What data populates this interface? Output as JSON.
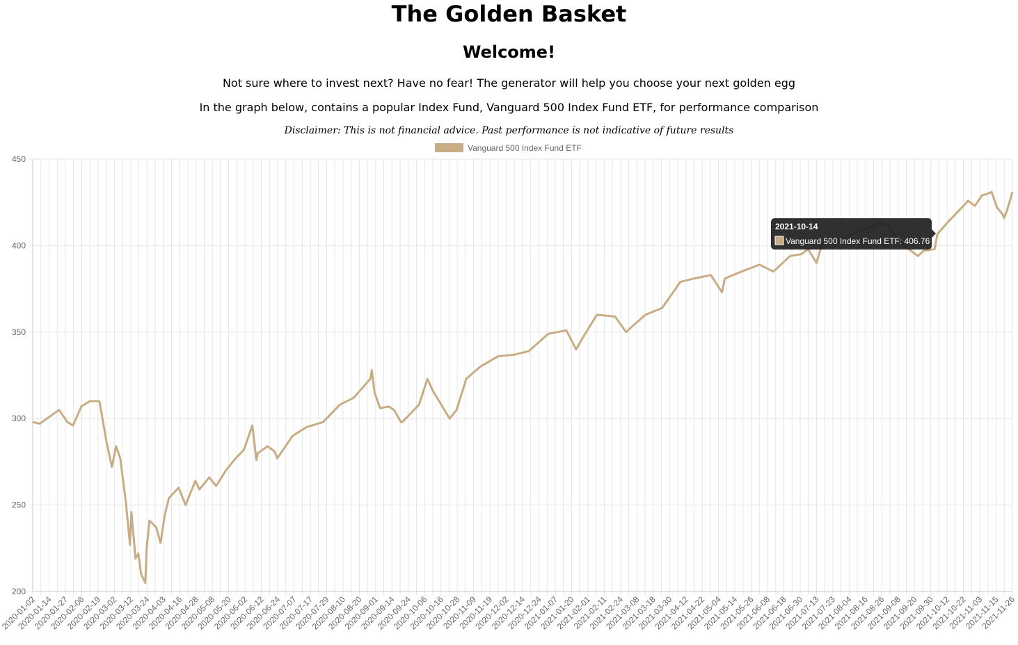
{
  "page": {
    "title": "The Golden Basket",
    "welcome": "Welcome!",
    "intro_1": "Not sure where to invest next? Have no fear! The generator will help you choose your next golden egg",
    "intro_2": "In the graph below, contains a popular Index Fund, Vanguard 500 Index Fund ETF, for performance comparison",
    "disclaimer": "Disclaimer: This is not financial advice. Past performance is not indicative of future results"
  },
  "colors": {
    "series": "#c8ad84",
    "grid": "#e6e6e6",
    "tooltip_bg": "#1e1e1e"
  },
  "chart_data": {
    "type": "line",
    "legend_position": "top",
    "grid": true,
    "ylim": [
      200,
      450
    ],
    "yticks": [
      200,
      250,
      300,
      350,
      400,
      450
    ],
    "x_tick_labels": [
      "2020-01-02",
      "2020-01-14",
      "2020-01-27",
      "2020-02-06",
      "2020-02-19",
      "2020-03-02",
      "2020-03-12",
      "2020-03-24",
      "2020-04-03",
      "2020-04-16",
      "2020-04-28",
      "2020-05-08",
      "2020-05-20",
      "2020-06-02",
      "2020-06-12",
      "2020-06-24",
      "2020-07-07",
      "2020-07-17",
      "2020-07-29",
      "2020-08-10",
      "2020-08-20",
      "2020-09-01",
      "2020-09-14",
      "2020-09-24",
      "2020-10-06",
      "2020-10-16",
      "2020-10-28",
      "2020-11-09",
      "2020-11-19",
      "2020-12-02",
      "2020-12-14",
      "2020-12-24",
      "2021-01-07",
      "2021-01-20",
      "2021-02-01",
      "2021-02-11",
      "2021-02-24",
      "2021-03-08",
      "2021-03-18",
      "2021-03-30",
      "2021-04-12",
      "2021-04-22",
      "2021-05-04",
      "2021-05-14",
      "2021-05-26",
      "2021-06-08",
      "2021-06-18",
      "2021-06-30",
      "2021-07-13",
      "2021-07-23",
      "2021-08-04",
      "2021-08-16",
      "2021-08-26",
      "2021-09-08",
      "2021-09-20",
      "2021-09-30",
      "2021-10-12",
      "2021-10-22",
      "2021-11-03",
      "2021-11-15",
      "2021-11-26"
    ],
    "series": [
      {
        "name": "Vanguard 500 Index Fund ETF",
        "points": [
          [
            "2020-01-02",
            298
          ],
          [
            "2020-01-07",
            297
          ],
          [
            "2020-01-14",
            301
          ],
          [
            "2020-01-21",
            305
          ],
          [
            "2020-01-27",
            298
          ],
          [
            "2020-01-31",
            296
          ],
          [
            "2020-02-06",
            307
          ],
          [
            "2020-02-12",
            310
          ],
          [
            "2020-02-19",
            310
          ],
          [
            "2020-02-24",
            287
          ],
          [
            "2020-02-28",
            272
          ],
          [
            "2020-03-02",
            284
          ],
          [
            "2020-03-05",
            277
          ],
          [
            "2020-03-09",
            252
          ],
          [
            "2020-03-12",
            227
          ],
          [
            "2020-03-13",
            246
          ],
          [
            "2020-03-16",
            219
          ],
          [
            "2020-03-18",
            222
          ],
          [
            "2020-03-20",
            210
          ],
          [
            "2020-03-23",
            205
          ],
          [
            "2020-03-24",
            225
          ],
          [
            "2020-03-26",
            241
          ],
          [
            "2020-03-31",
            237
          ],
          [
            "2020-04-03",
            228
          ],
          [
            "2020-04-06",
            244
          ],
          [
            "2020-04-09",
            254
          ],
          [
            "2020-04-16",
            260
          ],
          [
            "2020-04-21",
            250
          ],
          [
            "2020-04-28",
            264
          ],
          [
            "2020-05-01",
            259
          ],
          [
            "2020-05-08",
            266
          ],
          [
            "2020-05-13",
            261
          ],
          [
            "2020-05-20",
            270
          ],
          [
            "2020-05-27",
            277
          ],
          [
            "2020-06-02",
            282
          ],
          [
            "2020-06-08",
            296
          ],
          [
            "2020-06-11",
            276
          ],
          [
            "2020-06-12",
            280
          ],
          [
            "2020-06-19",
            284
          ],
          [
            "2020-06-24",
            281
          ],
          [
            "2020-06-26",
            277
          ],
          [
            "2020-07-07",
            290
          ],
          [
            "2020-07-17",
            295
          ],
          [
            "2020-07-29",
            298
          ],
          [
            "2020-08-10",
            308
          ],
          [
            "2020-08-20",
            312
          ],
          [
            "2020-09-01",
            323
          ],
          [
            "2020-09-02",
            328
          ],
          [
            "2020-09-04",
            315
          ],
          [
            "2020-09-08",
            306
          ],
          [
            "2020-09-14",
            307
          ],
          [
            "2020-09-18",
            305
          ],
          [
            "2020-09-23",
            298
          ],
          [
            "2020-09-24",
            298
          ],
          [
            "2020-10-06",
            308
          ],
          [
            "2020-10-12",
            323
          ],
          [
            "2020-10-16",
            316
          ],
          [
            "2020-10-28",
            300
          ],
          [
            "2020-11-02",
            305
          ],
          [
            "2020-11-09",
            323
          ],
          [
            "2020-11-19",
            330
          ],
          [
            "2020-12-02",
            336
          ],
          [
            "2020-12-14",
            337
          ],
          [
            "2020-12-24",
            339
          ],
          [
            "2021-01-07",
            349
          ],
          [
            "2021-01-20",
            351
          ],
          [
            "2021-01-27",
            340
          ],
          [
            "2021-02-01",
            347
          ],
          [
            "2021-02-11",
            360
          ],
          [
            "2021-02-24",
            359
          ],
          [
            "2021-03-04",
            350
          ],
          [
            "2021-03-08",
            353
          ],
          [
            "2021-03-18",
            360
          ],
          [
            "2021-03-30",
            364
          ],
          [
            "2021-04-12",
            379
          ],
          [
            "2021-04-22",
            381
          ],
          [
            "2021-05-04",
            383
          ],
          [
            "2021-05-12",
            373
          ],
          [
            "2021-05-14",
            381
          ],
          [
            "2021-05-26",
            385
          ],
          [
            "2021-06-08",
            389
          ],
          [
            "2021-06-18",
            385
          ],
          [
            "2021-06-30",
            394
          ],
          [
            "2021-07-08",
            395
          ],
          [
            "2021-07-13",
            398
          ],
          [
            "2021-07-19",
            390
          ],
          [
            "2021-07-23",
            401
          ],
          [
            "2021-08-04",
            403
          ],
          [
            "2021-08-16",
            408
          ],
          [
            "2021-08-26",
            410
          ],
          [
            "2021-09-02",
            413
          ],
          [
            "2021-09-08",
            412
          ],
          [
            "2021-09-20",
            400
          ],
          [
            "2021-09-30",
            394
          ],
          [
            "2021-10-04",
            397
          ],
          [
            "2021-10-12",
            398
          ],
          [
            "2021-10-14",
            406.76
          ],
          [
            "2021-10-22",
            414
          ],
          [
            "2021-11-03",
            424
          ],
          [
            "2021-11-05",
            426
          ],
          [
            "2021-11-10",
            423
          ],
          [
            "2021-11-15",
            429
          ],
          [
            "2021-11-19",
            430
          ],
          [
            "2021-11-22",
            431
          ],
          [
            "2021-11-26",
            422
          ],
          [
            "2021-11-30",
            418
          ],
          [
            "2021-12-01",
            416
          ],
          [
            "2021-12-03",
            420
          ],
          [
            "2021-12-07",
            431
          ]
        ]
      }
    ]
  },
  "tooltip": {
    "title": "2021-10-14",
    "body": "Vanguard 500 Index Fund ETF: 406.76"
  }
}
